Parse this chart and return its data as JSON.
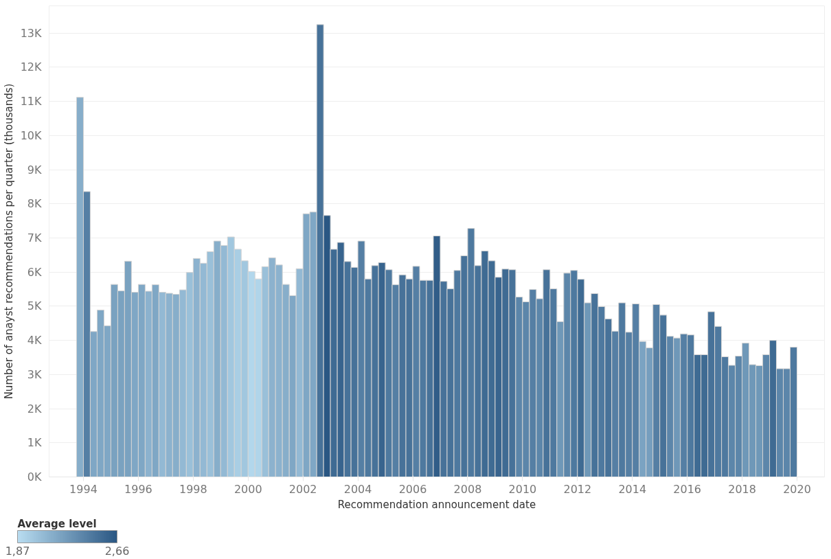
{
  "chart_data": {
    "type": "bar",
    "xlabel": "Recommendation announcement date",
    "ylabel": "Number of anayst recommendations per quarter (thousands)",
    "clabel": "Average level",
    "x": [
      1993.875,
      1994.125,
      1994.375,
      1994.625,
      1994.875,
      1995.125,
      1995.375,
      1995.625,
      1995.875,
      1996.125,
      1996.375,
      1996.625,
      1996.875,
      1997.125,
      1997.375,
      1997.625,
      1997.875,
      1998.125,
      1998.375,
      1998.625,
      1998.875,
      1999.125,
      1999.375,
      1999.625,
      1999.875,
      2000.125,
      2000.375,
      2000.625,
      2000.875,
      2001.125,
      2001.375,
      2001.625,
      2001.875,
      2002.125,
      2002.375,
      2002.625,
      2002.875,
      2003.125,
      2003.375,
      2003.625,
      2003.875,
      2004.125,
      2004.375,
      2004.625,
      2004.875,
      2005.125,
      2005.375,
      2005.625,
      2005.875,
      2006.125,
      2006.375,
      2006.625,
      2006.875,
      2007.125,
      2007.375,
      2007.625,
      2007.875,
      2008.125,
      2008.375,
      2008.625,
      2008.875,
      2009.125,
      2009.375,
      2009.625,
      2009.875,
      2010.125,
      2010.375,
      2010.625,
      2010.875,
      2011.125,
      2011.375,
      2011.625,
      2011.875,
      2012.125,
      2012.375,
      2012.625,
      2012.875,
      2013.125,
      2013.375,
      2013.625,
      2013.875,
      2014.125,
      2014.375,
      2014.625,
      2014.875,
      2015.125,
      2015.375,
      2015.625,
      2015.875,
      2016.125,
      2016.375,
      2016.625,
      2016.875,
      2017.125,
      2017.375,
      2017.625,
      2017.875,
      2018.125,
      2018.375,
      2018.625,
      2018.875,
      2019.125,
      2019.375,
      2019.625,
      2019.875
    ],
    "values": [
      11.12,
      8.36,
      4.26,
      4.89,
      4.43,
      5.64,
      5.45,
      6.32,
      5.41,
      5.64,
      5.44,
      5.63,
      5.41,
      5.38,
      5.35,
      5.48,
      5.99,
      6.4,
      6.26,
      6.6,
      6.91,
      6.78,
      7.03,
      6.67,
      6.33,
      6.02,
      5.8,
      6.16,
      6.42,
      6.21,
      5.64,
      5.31,
      6.1,
      7.71,
      7.76,
      13.25,
      7.66,
      6.67,
      6.87,
      6.31,
      6.14,
      6.91,
      5.8,
      6.19,
      6.28,
      6.07,
      5.63,
      5.92,
      5.8,
      6.17,
      5.76,
      5.76,
      7.06,
      5.73,
      5.51,
      6.05,
      6.48,
      7.28,
      6.19,
      6.62,
      6.33,
      5.85,
      6.09,
      6.07,
      5.27,
      5.13,
      5.49,
      5.22,
      6.07,
      5.51,
      4.55,
      5.97,
      6.05,
      5.79,
      5.1,
      5.37,
      4.99,
      4.63,
      4.27,
      5.1,
      4.24,
      5.07,
      3.97,
      3.78,
      5.05,
      4.74,
      4.12,
      4.07,
      4.19,
      4.16,
      3.58,
      3.58,
      4.84,
      4.41,
      3.52,
      3.27,
      3.54,
      3.92,
      3.29,
      3.26,
      3.58,
      4.0,
      3.17,
      3.17,
      3.8
    ],
    "cvalues": [
      2.15,
      2.42,
      2.19,
      2.19,
      2.19,
      2.22,
      2.22,
      2.22,
      2.19,
      2.19,
      2.12,
      2.19,
      2.08,
      2.12,
      2.15,
      2.08,
      2.04,
      2.12,
      2.08,
      2.04,
      2.15,
      2.08,
      2.0,
      1.96,
      2.0,
      1.91,
      1.92,
      2.04,
      2.12,
      2.12,
      2.15,
      2.19,
      2.08,
      2.19,
      2.19,
      2.5,
      2.66,
      2.54,
      2.58,
      2.5,
      2.5,
      2.42,
      2.46,
      2.5,
      2.58,
      2.46,
      2.42,
      2.5,
      2.5,
      2.42,
      2.46,
      2.5,
      2.62,
      2.5,
      2.5,
      2.46,
      2.5,
      2.46,
      2.5,
      2.54,
      2.54,
      2.58,
      2.54,
      2.5,
      2.38,
      2.38,
      2.42,
      2.38,
      2.5,
      2.46,
      2.28,
      2.38,
      2.46,
      2.54,
      2.28,
      2.5,
      2.46,
      2.5,
      2.42,
      2.46,
      2.42,
      2.42,
      2.21,
      2.24,
      2.42,
      2.5,
      2.38,
      2.28,
      2.42,
      2.46,
      2.54,
      2.54,
      2.5,
      2.46,
      2.46,
      2.38,
      2.38,
      2.28,
      2.28,
      2.28,
      2.38,
      2.54,
      2.38,
      2.38,
      2.46
    ],
    "clim": [
      1.87,
      2.66
    ],
    "cticks": [
      {
        "value": 1.87,
        "label": "1,87"
      },
      {
        "value": 2.66,
        "label": "2,66"
      }
    ],
    "xlim": [
      1992.75,
      2021.0
    ],
    "xticks": [
      1994,
      1996,
      1998,
      2000,
      2002,
      2004,
      2006,
      2008,
      2010,
      2012,
      2014,
      2016,
      2018,
      2020
    ],
    "ylim": [
      0,
      13.8
    ],
    "yticks": [
      {
        "value": 0,
        "label": "0K"
      },
      {
        "value": 1,
        "label": "1K"
      },
      {
        "value": 2,
        "label": "2K"
      },
      {
        "value": 3,
        "label": "3K"
      },
      {
        "value": 4,
        "label": "4K"
      },
      {
        "value": 5,
        "label": "5K"
      },
      {
        "value": 6,
        "label": "6K"
      },
      {
        "value": 7,
        "label": "7K"
      },
      {
        "value": 8,
        "label": "8K"
      },
      {
        "value": 9,
        "label": "9K"
      },
      {
        "value": 10,
        "label": "10K"
      },
      {
        "value": 11,
        "label": "11K"
      },
      {
        "value": 12,
        "label": "12K"
      },
      {
        "value": 13,
        "label": "13K"
      }
    ],
    "grid": "y"
  }
}
